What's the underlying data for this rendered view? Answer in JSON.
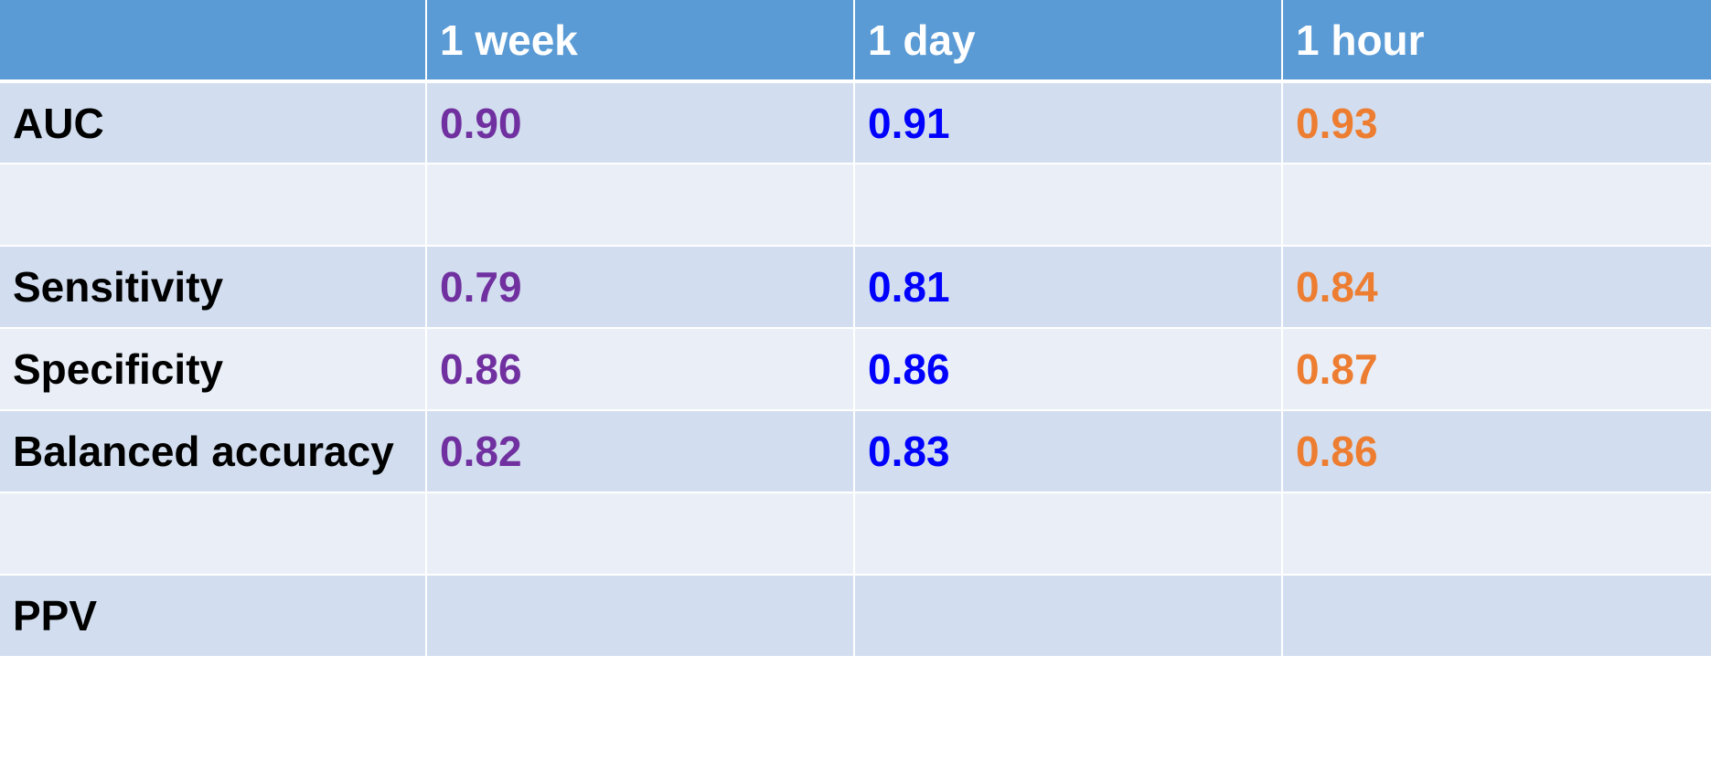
{
  "columns": [
    "",
    "1 week",
    "1 day",
    "1 hour"
  ],
  "rows": [
    {
      "label": "AUC",
      "values": [
        "0.90",
        "0.91",
        "0.93"
      ]
    },
    {
      "label": "",
      "values": [
        "",
        "",
        ""
      ]
    },
    {
      "label": "Sensitivity",
      "values": [
        "0.79",
        "0.81",
        "0.84"
      ]
    },
    {
      "label": "Specificity",
      "values": [
        "0.86",
        "0.86",
        "0.87"
      ]
    },
    {
      "label": "Balanced accuracy",
      "values": [
        "0.82",
        "0.83",
        "0.86"
      ]
    },
    {
      "label": "",
      "values": [
        "",
        "",
        ""
      ]
    },
    {
      "label": "PPV",
      "values": [
        "",
        "",
        ""
      ]
    }
  ],
  "colors": {
    "header_bg": "#5b9bd5",
    "header_text": "#ffffff",
    "row_band_dark": "#d2deef",
    "row_band_light": "#eaeff7",
    "week_value": "#7030a0",
    "day_value": "#0000ff",
    "hour_value": "#ed7d31"
  }
}
